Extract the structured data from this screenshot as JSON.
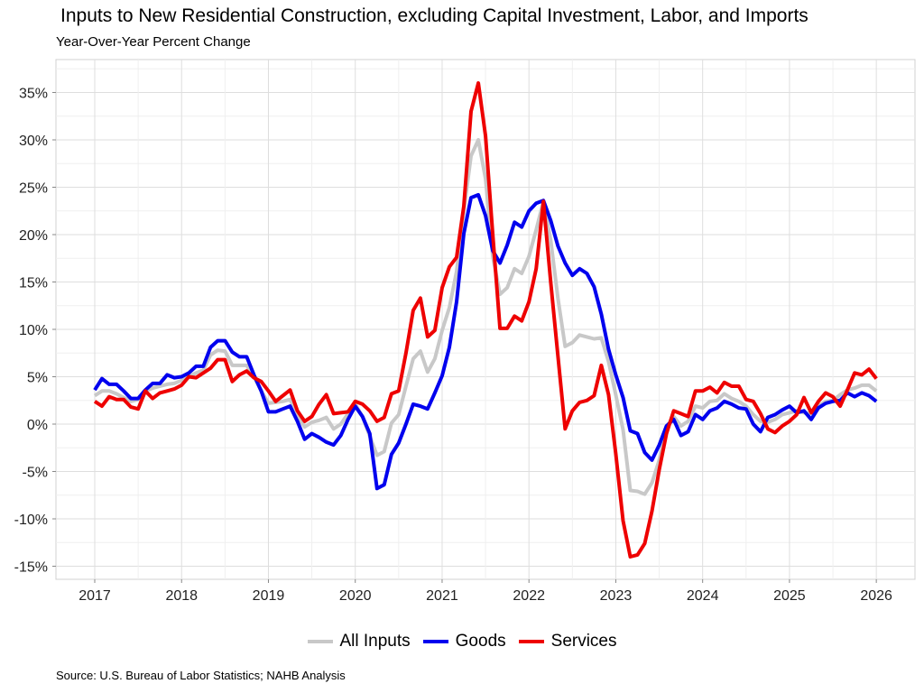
{
  "chart_data": {
    "type": "line",
    "title": "Inputs to New Residential Construction, excluding Capital Investment, Labor, and Imports",
    "subtitle": "Year-Over-Year Percent Change",
    "source": "Source: U.S. Bureau of Labor Statistics; NAHB Analysis",
    "xlabel": "",
    "ylabel": "",
    "x_start": "2017-01",
    "frequency": "monthly",
    "x_ticks": [
      "2017",
      "2018",
      "2019",
      "2020",
      "2021",
      "2022",
      "2023",
      "2024",
      "2025",
      "2026"
    ],
    "y_ticks": [
      "35%",
      "30%",
      "25%",
      "20%",
      "15%",
      "10%",
      "5%",
      "0%",
      "-5%",
      "-10%",
      "-15%"
    ],
    "y_tick_values": [
      35,
      30,
      25,
      20,
      15,
      10,
      5,
      0,
      -5,
      -10,
      -15
    ],
    "ylim": [
      -16,
      38
    ],
    "grid": true,
    "legend_position": "bottom",
    "series": [
      {
        "name": "All Inputs",
        "color": "#c8c8c8",
        "values": [
          3.0,
          3.5,
          3.5,
          3.2,
          2.8,
          2.4,
          2.6,
          3.5,
          3.8,
          4.0,
          4.2,
          4.3,
          4.6,
          5.0,
          5.4,
          5.7,
          7.3,
          7.8,
          7.7,
          6.2,
          6.2,
          6.2,
          5.0,
          3.5,
          2.2,
          2.3,
          2.4,
          2.6,
          1.0,
          -0.3,
          0.2,
          0.4,
          0.7,
          -0.5,
          0.0,
          1.1,
          2.1,
          0.8,
          -1.3,
          -3.3,
          -2.9,
          0.1,
          1.0,
          4.0,
          6.9,
          7.7,
          5.5,
          6.9,
          9.9,
          12.3,
          16.1,
          22.5,
          28.3,
          30.0,
          25.9,
          17.7,
          13.7,
          14.4,
          16.4,
          15.9,
          17.7,
          20.5,
          23.5,
          19.4,
          13.3,
          8.2,
          8.6,
          9.4,
          9.2,
          9.0,
          9.1,
          6.6,
          3.1,
          -0.6,
          -7.0,
          -7.1,
          -7.4,
          -6.2,
          -3.8,
          -0.3,
          0.8,
          -0.2,
          0.3,
          1.9,
          1.7,
          2.4,
          2.5,
          3.2,
          2.7,
          2.4,
          1.9,
          1.0,
          0.3,
          0.2,
          0.5,
          1.0,
          1.2,
          1.4,
          1.2,
          1.1,
          1.9,
          2.4,
          2.5,
          3.1,
          3.6,
          3.8,
          4.1,
          4.1,
          3.5
        ]
      },
      {
        "name": "Goods",
        "color": "#0000ee",
        "values": [
          3.6,
          4.8,
          4.2,
          4.2,
          3.5,
          2.7,
          2.7,
          3.6,
          4.3,
          4.3,
          5.2,
          4.9,
          5.0,
          5.4,
          6.1,
          6.1,
          8.1,
          8.8,
          8.8,
          7.6,
          7.1,
          7.1,
          5.2,
          3.5,
          1.3,
          1.3,
          1.6,
          1.9,
          0.3,
          -1.6,
          -1.0,
          -1.4,
          -1.9,
          -2.2,
          -1.2,
          0.5,
          1.9,
          0.8,
          -1.0,
          -6.8,
          -6.4,
          -3.2,
          -2.0,
          0.0,
          2.1,
          1.9,
          1.6,
          3.3,
          5.1,
          8.1,
          12.9,
          20.1,
          23.9,
          24.2,
          22.0,
          18.3,
          17.0,
          18.9,
          21.3,
          20.8,
          22.5,
          23.3,
          23.6,
          21.5,
          18.8,
          17.0,
          15.7,
          16.4,
          15.9,
          14.5,
          11.6,
          7.9,
          5.2,
          2.8,
          -0.7,
          -1.0,
          -3.0,
          -3.8,
          -2.2,
          -0.2,
          0.5,
          -1.2,
          -0.8,
          1.0,
          0.5,
          1.4,
          1.7,
          2.4,
          2.1,
          1.7,
          1.6,
          0.0,
          -0.8,
          0.7,
          1.0,
          1.5,
          1.9,
          1.2,
          1.4,
          0.5,
          1.7,
          2.2,
          2.4,
          2.5,
          3.3,
          2.9,
          3.3,
          3.0,
          2.4
        ]
      },
      {
        "name": "Services",
        "color": "#ee0000",
        "values": [
          2.4,
          1.9,
          2.9,
          2.6,
          2.6,
          1.8,
          1.6,
          3.5,
          2.7,
          3.3,
          3.5,
          3.7,
          4.1,
          5.0,
          4.9,
          5.4,
          5.9,
          6.8,
          6.8,
          4.5,
          5.2,
          5.6,
          4.9,
          4.5,
          3.5,
          2.4,
          3.0,
          3.6,
          1.4,
          0.3,
          0.8,
          2.1,
          3.1,
          1.1,
          1.2,
          1.3,
          2.4,
          2.1,
          1.4,
          0.3,
          0.7,
          3.2,
          3.5,
          7.5,
          12.0,
          13.3,
          9.2,
          9.9,
          14.4,
          16.6,
          17.6,
          23.0,
          33.0,
          36.0,
          30.4,
          20.0,
          10.1,
          10.1,
          11.4,
          10.9,
          12.9,
          16.4,
          23.5,
          15.0,
          7.2,
          -0.5,
          1.4,
          2.3,
          2.5,
          3.0,
          6.2,
          3.1,
          -3.1,
          -10.2,
          -14.0,
          -13.8,
          -12.6,
          -9.2,
          -4.8,
          -1.0,
          1.4,
          1.1,
          0.8,
          3.5,
          3.5,
          3.9,
          3.3,
          4.4,
          4.0,
          4.0,
          2.6,
          2.4,
          1.1,
          -0.5,
          -0.9,
          -0.2,
          0.3,
          1.0,
          2.8,
          1.2,
          2.4,
          3.3,
          2.9,
          1.9,
          3.6,
          5.4,
          5.2,
          5.8,
          4.8
        ]
      }
    ]
  }
}
